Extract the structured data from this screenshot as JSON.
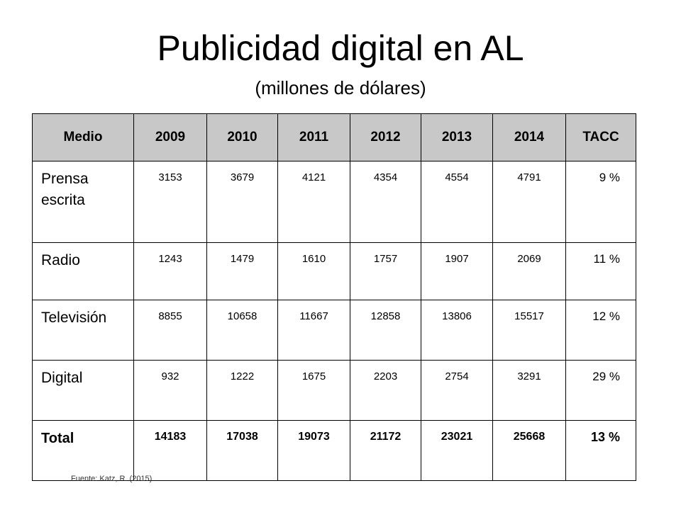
{
  "title": "Publicidad digital en AL",
  "subtitle": "(millones de dólares)",
  "table": {
    "headers": [
      "Medio",
      "2009",
      "2010",
      "2011",
      "2012",
      "2013",
      "2014",
      "TACC"
    ],
    "rows": [
      {
        "medio": "Prensa escrita",
        "values": [
          "3153",
          "3679",
          "4121",
          "4354",
          "4554",
          "4791"
        ],
        "tacc": "9 %"
      },
      {
        "medio": "Radio",
        "values": [
          "1243",
          "1479",
          "1610",
          "1757",
          "1907",
          "2069"
        ],
        "tacc": "11 %"
      },
      {
        "medio": "Televisión",
        "values": [
          "8855",
          "10658",
          "11667",
          "12858",
          "13806",
          "15517"
        ],
        "tacc": "12 %"
      },
      {
        "medio": "Digital",
        "values": [
          "932",
          "1222",
          "1675",
          "2203",
          "2754",
          "3291"
        ],
        "tacc": "29 %"
      },
      {
        "medio": "Total",
        "values": [
          "14183",
          "17038",
          "19073",
          "21172",
          "23021",
          "25668"
        ],
        "tacc": "13 %"
      }
    ]
  },
  "source": "Fuente: Katz, R. (2015)"
}
